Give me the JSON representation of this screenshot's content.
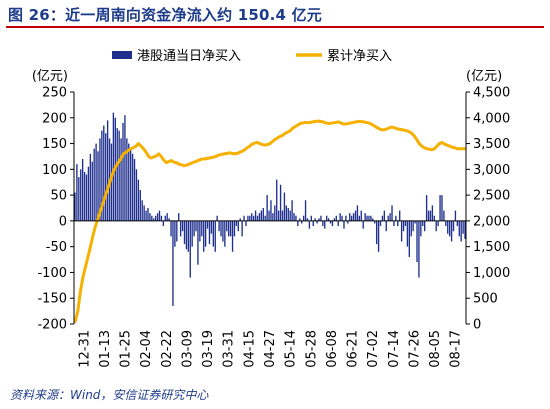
{
  "title": "图 26：近一周南向资金净流入约 150.4 亿元",
  "source": "资料来源：Wind，安信证券研究中心",
  "colors": {
    "bar": "#1e2f8e",
    "line": "#f5b000",
    "title": "#1f3c8a",
    "rule": "#c00000"
  },
  "chart_data": {
    "type": "bar",
    "left_unit": "(亿元)",
    "right_unit": "(亿元)",
    "ylim_left": [
      -200,
      250
    ],
    "ylim_right": [
      0,
      4500
    ],
    "y_ticks_left": [
      "-200",
      "-150",
      "-100",
      "-50",
      "0",
      "50",
      "100",
      "150",
      "200",
      "250"
    ],
    "y_ticks_right": [
      "0",
      "500",
      "1,000",
      "1,500",
      "2,000",
      "2,500",
      "3,000",
      "3,500",
      "4,000",
      "4,500"
    ],
    "x_tick_labels": [
      "12-31",
      "01-13",
      "01-25",
      "02-04",
      "02-22",
      "03-09",
      "03-19",
      "03-31",
      "04-15",
      "04-27",
      "05-14",
      "05-28",
      "06-08",
      "06-21",
      "07-02",
      "07-14",
      "07-26",
      "08-05",
      "08-17"
    ],
    "grid": false,
    "legend_position": "top",
    "series": [
      {
        "name": "港股通当日净买入",
        "type": "bar",
        "axis": "left",
        "values": [
          55,
          110,
          85,
          100,
          120,
          95,
          90,
          105,
          130,
          115,
          140,
          150,
          135,
          160,
          175,
          185,
          170,
          195,
          160,
          150,
          210,
          200,
          180,
          175,
          160,
          190,
          205,
          160,
          150,
          140,
          130,
          120,
          100,
          80,
          60,
          40,
          30,
          20,
          25,
          15,
          10,
          5,
          10,
          15,
          20,
          10,
          -10,
          10,
          15,
          5,
          -30,
          -165,
          -50,
          -40,
          15,
          -30,
          -20,
          -45,
          -55,
          -60,
          -110,
          -50,
          -30,
          -20,
          -85,
          -40,
          -30,
          -60,
          -50,
          -15,
          -45,
          -25,
          -50,
          -60,
          10,
          -20,
          -30,
          -40,
          -50,
          -20,
          -30,
          -30,
          -60,
          -30,
          -10,
          -20,
          5,
          -30,
          10,
          -10,
          10,
          10,
          15,
          10,
          20,
          10,
          15,
          20,
          25,
          10,
          50,
          20,
          40,
          15,
          30,
          80,
          20,
          70,
          20,
          55,
          30,
          25,
          20,
          40,
          15,
          10,
          -10,
          5,
          -5,
          10,
          40,
          5,
          -15,
          10,
          -10,
          5,
          -5,
          5,
          10,
          -10,
          -15,
          10,
          5,
          -5,
          -10,
          5,
          10,
          -10,
          15,
          10,
          -15,
          10,
          -5,
          15,
          10,
          15,
          20,
          30,
          10,
          20,
          -15,
          15,
          10,
          10,
          10,
          5,
          -5,
          -45,
          -60,
          -10,
          10,
          20,
          -20,
          10,
          15,
          30,
          -10,
          10,
          -10,
          20,
          -40,
          -20,
          -10,
          -50,
          -70,
          -30,
          -20,
          -5,
          -80,
          -110,
          -30,
          -10,
          -20,
          50,
          20,
          20,
          30,
          10,
          -20,
          -10,
          50,
          50,
          20,
          -10,
          -25,
          -30,
          -40,
          -20,
          20,
          -10,
          -30,
          -40,
          -25,
          -35
        ]
      },
      {
        "name": "累计净买入",
        "type": "line",
        "axis": "right",
        "values": [
          50,
          250,
          620,
          900,
          1100,
          1300,
          1500,
          1720,
          1900,
          2050,
          2200,
          2350,
          2500,
          2650,
          2800,
          2950,
          3050,
          3130,
          3200,
          3300,
          3330,
          3370,
          3400,
          3420,
          3450,
          3500,
          3450,
          3400,
          3330,
          3250,
          3220,
          3240,
          3260,
          3300,
          3250,
          3180,
          3130,
          3150,
          3170,
          3140,
          3130,
          3100,
          3090,
          3070,
          3080,
          3100,
          3120,
          3140,
          3160,
          3180,
          3200,
          3200,
          3210,
          3220,
          3230,
          3240,
          3260,
          3280,
          3290,
          3300,
          3310,
          3320,
          3310,
          3300,
          3310,
          3330,
          3350,
          3380,
          3420,
          3450,
          3490,
          3510,
          3520,
          3500,
          3480,
          3470,
          3480,
          3500,
          3540,
          3580,
          3610,
          3640,
          3660,
          3700,
          3720,
          3750,
          3800,
          3830,
          3860,
          3890,
          3900,
          3910,
          3905,
          3910,
          3920,
          3930,
          3935,
          3930,
          3920,
          3900,
          3890,
          3895,
          3900,
          3910,
          3920,
          3900,
          3880,
          3880,
          3890,
          3900,
          3910,
          3920,
          3930,
          3925,
          3920,
          3910,
          3900,
          3880,
          3850,
          3820,
          3790,
          3770,
          3765,
          3780,
          3800,
          3820,
          3810,
          3790,
          3780,
          3770,
          3760,
          3750,
          3730,
          3700,
          3650,
          3580,
          3500,
          3450,
          3420,
          3400,
          3390,
          3380,
          3400,
          3450,
          3500,
          3520,
          3490,
          3470,
          3450,
          3430,
          3420,
          3400,
          3400,
          3400,
          3400
        ]
      }
    ]
  }
}
